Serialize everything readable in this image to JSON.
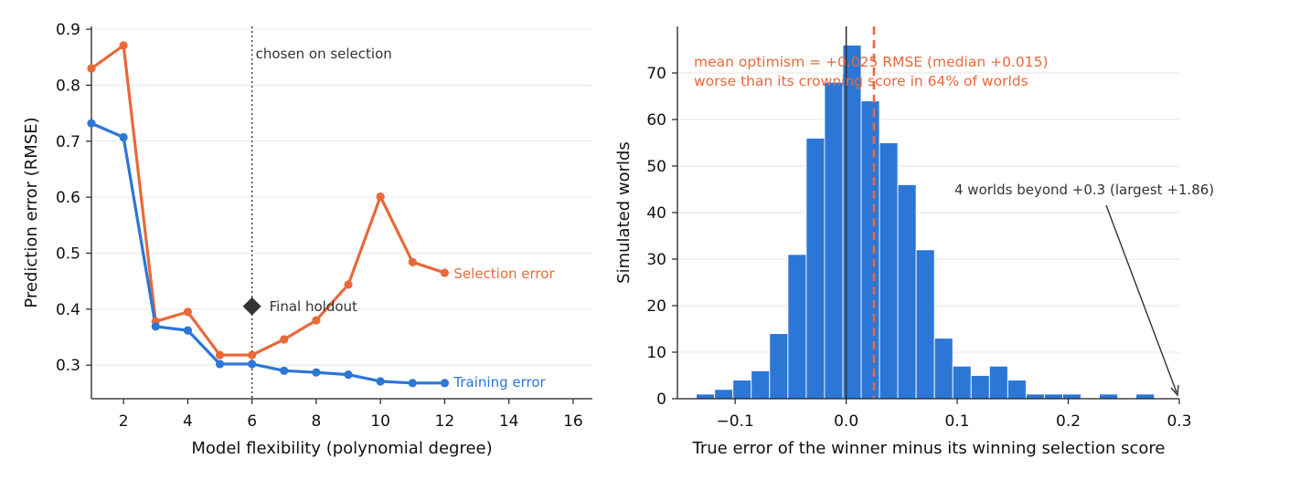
{
  "chart_data": [
    {
      "type": "line",
      "xlabel": "Model flexibility (polynomial degree)",
      "ylabel": "Prediction error (RMSE)",
      "xlim": [
        1,
        16.6
      ],
      "ylim": [
        0.24,
        0.905
      ],
      "xticks": [
        2,
        4,
        6,
        8,
        10,
        12,
        14,
        16
      ],
      "yticks": [
        0.3,
        0.4,
        0.5,
        0.6,
        0.7,
        0.8,
        0.9
      ],
      "grid": "horizontal",
      "colors": {
        "selection": "#e8693a",
        "training": "#2c76d6",
        "holdout": "#333333"
      },
      "x": [
        1,
        2,
        3,
        4,
        5,
        6,
        7,
        8,
        9,
        10,
        11,
        12
      ],
      "series": [
        {
          "name": "Selection error",
          "values": [
            0.83,
            0.871,
            0.378,
            0.395,
            0.318,
            0.318,
            0.346,
            0.38,
            0.444,
            0.601,
            0.484,
            0.465
          ]
        },
        {
          "name": "Training error",
          "values": [
            0.732,
            0.707,
            0.369,
            0.362,
            0.302,
            0.302,
            0.29,
            0.287,
            0.283,
            0.271,
            0.268,
            0.268
          ]
        }
      ],
      "final_holdout": {
        "label": "Final holdout",
        "x": 6,
        "y": 0.405
      },
      "chosen_line": {
        "x": 6,
        "label": "chosen on selection"
      }
    },
    {
      "type": "bar",
      "xlabel": "True error of the winner minus its winning selection score",
      "ylabel": "Simulated worlds",
      "xlim": [
        -0.152,
        0.3
      ],
      "ylim": [
        0,
        80
      ],
      "xticks": [
        -0.1,
        0.0,
        0.1,
        0.2,
        0.3
      ],
      "xtick_labels": [
        "−0.1",
        "0.0",
        "0.1",
        "0.2",
        "0.3"
      ],
      "yticks": [
        0,
        10,
        20,
        30,
        40,
        50,
        60,
        70
      ],
      "grid": "horizontal",
      "colors": {
        "bars": "#2c76d6",
        "mean_line": "#e8693a",
        "zero_line": "#333333",
        "annotation": "#e8693a"
      },
      "bin_start": -0.135,
      "bin_width": 0.0165,
      "counts": [
        1,
        2,
        4,
        6,
        14,
        31,
        56,
        68,
        76,
        64,
        55,
        46,
        32,
        13,
        7,
        5,
        7,
        4,
        1,
        1,
        1,
        0,
        1,
        0,
        1
      ],
      "mean_line_x": 0.025,
      "zero_line_x": 0.0,
      "annotation_line1": "mean optimism = +0.025 RMSE (median +0.015)",
      "annotation_line2": "worse than its crowning score in 64% of worlds",
      "overflow_note": "4 worlds beyond +0.3 (largest +1.86)"
    }
  ]
}
